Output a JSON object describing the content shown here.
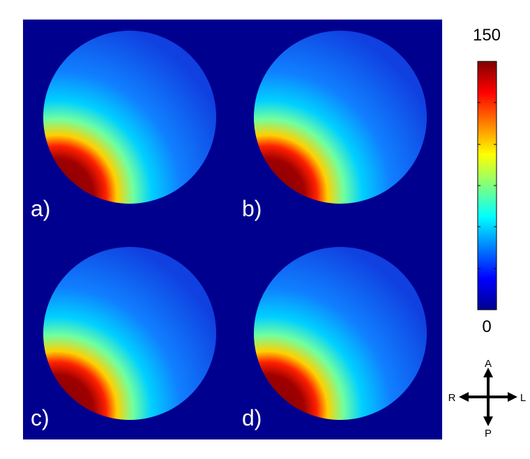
{
  "panels": [
    {
      "label": "a)"
    },
    {
      "label": "b)"
    },
    {
      "label": "c)"
    },
    {
      "label": "d)"
    }
  ],
  "colorbar": {
    "max": 150,
    "min": 0
  },
  "orientation": {
    "anterior": "A",
    "posterior": "P",
    "right": "R",
    "left": "L"
  }
}
